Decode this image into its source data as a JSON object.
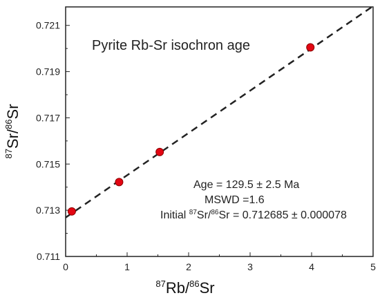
{
  "chart_data": {
    "type": "scatter",
    "title": "Pyrite Rb-Sr isochron age",
    "xlabel": {
      "sup1": "87",
      "base1": "Rb/",
      "sup2": "86",
      "base2": "Sr"
    },
    "ylabel": {
      "sup1": "87",
      "base1": "Sr/",
      "sup2": "86",
      "base2": "Sr"
    },
    "xlim": [
      0,
      5
    ],
    "ylim": [
      0.711,
      0.7218
    ],
    "x_ticks": [
      0,
      1,
      2,
      3,
      4,
      5
    ],
    "x_tick_labels": [
      "0",
      "1",
      "2",
      "3",
      "4",
      "5"
    ],
    "y_ticks": [
      0.711,
      0.713,
      0.715,
      0.717,
      0.719,
      0.721
    ],
    "y_tick_labels": [
      "0.711",
      "0.713",
      "0.715",
      "0.717",
      "0.719",
      "0.721"
    ],
    "grid": false,
    "points": [
      {
        "x": 0.1,
        "y": 0.71295
      },
      {
        "x": 0.87,
        "y": 0.71422
      },
      {
        "x": 1.53,
        "y": 0.71552
      },
      {
        "x": 3.98,
        "y": 0.72005
      }
    ],
    "fit_line": {
      "intercept": 0.712685,
      "slope": 0.00183
    },
    "annotation": {
      "age": "Age = 129.5 ± 2.5 Ma",
      "mswd": "MSWD =1.6",
      "initial_prefix": "Initial ",
      "initial_sup1": "87",
      "initial_mid": "Sr/",
      "initial_sup2": "86",
      "initial_suffix": "Sr = 0.712685 ± 0.000078"
    },
    "colors": {
      "point_fill": "#e30613",
      "point_stroke": "#8b0000",
      "line": "#222222",
      "frame": "#222222"
    }
  }
}
